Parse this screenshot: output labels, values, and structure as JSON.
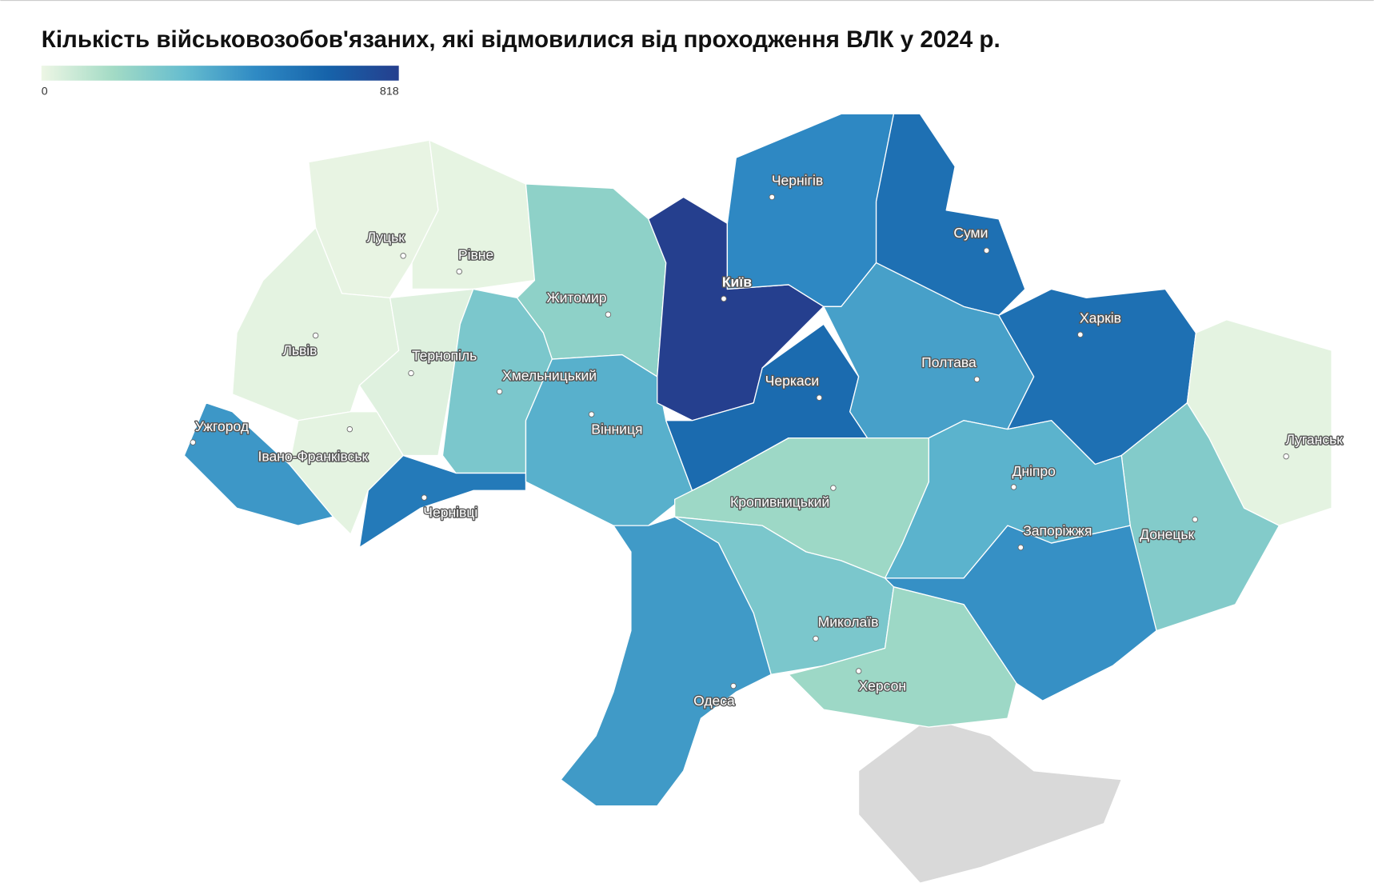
{
  "title": "Кількість військовозобов'язаних, які відмовилися від проходження ВЛК у 2024 р.",
  "legend": {
    "min": 0,
    "max": 818,
    "colors": [
      "#edf6e5",
      "#a3dbc5",
      "#66bdcf",
      "#2f8ac4",
      "#1663aa",
      "#253f8e"
    ]
  },
  "regions": [
    {
      "name": "Луцьк",
      "value": 10
    },
    {
      "name": "Рівне",
      "value": 15
    },
    {
      "name": "Львів",
      "value": 20
    },
    {
      "name": "Тернопіль",
      "value": 30
    },
    {
      "name": "Івано-Франківськ",
      "value": 20
    },
    {
      "name": "Ужгород",
      "value": 450
    },
    {
      "name": "Чернівці",
      "value": 560
    },
    {
      "name": "Житомир",
      "value": 220
    },
    {
      "name": "Хмельницький",
      "value": 270
    },
    {
      "name": "Вінниця",
      "value": 370
    },
    {
      "name": "Київ",
      "value": 818
    },
    {
      "name": "Чернігів",
      "value": 500
    },
    {
      "name": "Суми",
      "value": 600
    },
    {
      "name": "Черкаси",
      "value": 620
    },
    {
      "name": "Полтава",
      "value": 420
    },
    {
      "name": "Харків",
      "value": 600
    },
    {
      "name": "Луганськ",
      "value": 20
    },
    {
      "name": "Донецьк",
      "value": 250
    },
    {
      "name": "Дніпро",
      "value": 360
    },
    {
      "name": "Запоріжжя",
      "value": 470
    },
    {
      "name": "Кропивницький",
      "value": 180
    },
    {
      "name": "Миколаїв",
      "value": 270
    },
    {
      "name": "Херсон",
      "value": 180
    },
    {
      "name": "Одеса",
      "value": 440
    }
  ]
}
